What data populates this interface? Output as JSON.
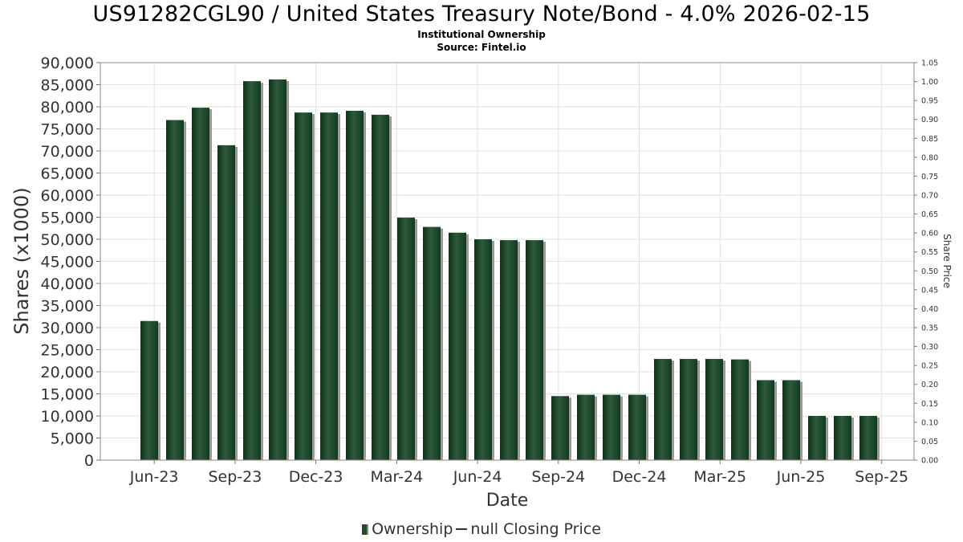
{
  "chart_data": {
    "type": "bar",
    "title": "US91282CGL90 / United States Treasury Note/Bond - 4.0% 2026-02-15",
    "subtitle_lines": [
      "Institutional Ownership",
      "Source: Fintel.io"
    ],
    "xlabel": "Date",
    "ylabel": "Shares (x1000)",
    "y2label": "Share Price",
    "ylim": [
      0,
      90000
    ],
    "y2lim": [
      0,
      1.05
    ],
    "yticks": [
      "0",
      "5,000",
      "10,000",
      "15,000",
      "20,000",
      "25,000",
      "30,000",
      "35,000",
      "40,000",
      "45,000",
      "50,000",
      "55,000",
      "60,000",
      "65,000",
      "70,000",
      "75,000",
      "80,000",
      "85,000",
      "90,000"
    ],
    "y2ticks": [
      "0.00",
      "0.05",
      "0.10",
      "0.15",
      "0.20",
      "0.25",
      "0.30",
      "0.35",
      "0.40",
      "0.45",
      "0.50",
      "0.55",
      "0.60",
      "0.65",
      "0.70",
      "0.75",
      "0.80",
      "0.85",
      "0.90",
      "0.95",
      "1.00",
      "1.05"
    ],
    "xticks": [
      "Jun-23",
      "Sep-23",
      "Dec-23",
      "Mar-24",
      "Jun-24",
      "Sep-24",
      "Dec-24",
      "Mar-25",
      "Jun-25",
      "Sep-25"
    ],
    "grid": true,
    "legend_placement": "bottom",
    "series": [
      {
        "name": "Ownership",
        "color": "#1f4a2b",
        "values": [
          31500,
          77000,
          79800,
          71300,
          85800,
          86200,
          78700,
          78700,
          79100,
          78200,
          54900,
          52800,
          51500,
          50000,
          49800,
          49800,
          14500,
          14800,
          14800,
          14800,
          22900,
          22900,
          22900,
          22800,
          18100,
          18100,
          10000,
          10000,
          10000
        ]
      }
    ],
    "legend": [
      {
        "label": "Ownership",
        "kind": "bar"
      },
      {
        "label": "null Closing Price",
        "kind": "line"
      }
    ]
  }
}
